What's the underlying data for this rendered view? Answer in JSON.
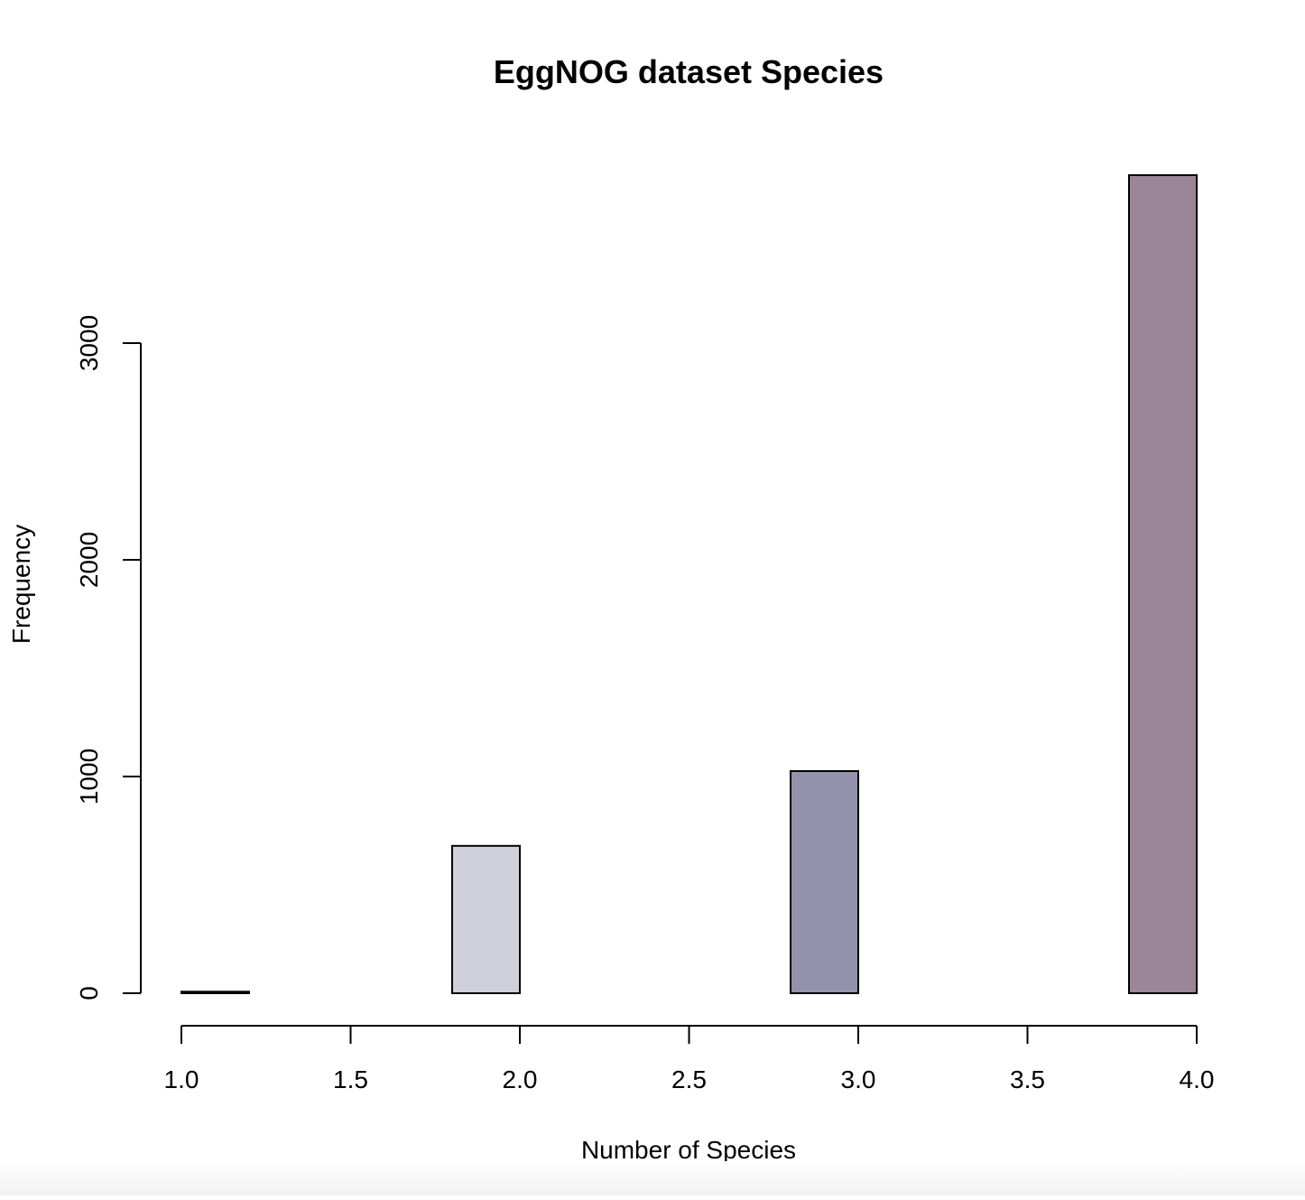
{
  "chart_data": {
    "type": "bar",
    "title": "EggNOG dataset Species",
    "xlabel": "Number of Species",
    "ylabel": "Frequency",
    "bins": [
      {
        "x0": 1.0,
        "x1": 1.2,
        "value": 7
      },
      {
        "x0": 1.2,
        "x1": 1.4,
        "value": 0
      },
      {
        "x0": 1.4,
        "x1": 1.6,
        "value": 0
      },
      {
        "x0": 1.6,
        "x1": 1.8,
        "value": 0
      },
      {
        "x0": 1.8,
        "x1": 2.0,
        "value": 680
      },
      {
        "x0": 2.0,
        "x1": 2.2,
        "value": 0
      },
      {
        "x0": 2.2,
        "x1": 2.4,
        "value": 0
      },
      {
        "x0": 2.4,
        "x1": 2.6,
        "value": 0
      },
      {
        "x0": 2.6,
        "x1": 2.8,
        "value": 0
      },
      {
        "x0": 2.8,
        "x1": 3.0,
        "value": 1025
      },
      {
        "x0": 3.0,
        "x1": 3.2,
        "value": 0
      },
      {
        "x0": 3.2,
        "x1": 3.4,
        "value": 0
      },
      {
        "x0": 3.4,
        "x1": 3.6,
        "value": 0
      },
      {
        "x0": 3.6,
        "x1": 3.8,
        "value": 0
      },
      {
        "x0": 3.8,
        "x1": 4.0,
        "value": 3775
      }
    ],
    "bar_colors": [
      "#ffffff",
      "#ffffff",
      "#ffffff",
      "#ffffff",
      "#cfd0da",
      "#ffffff",
      "#ffffff",
      "#ffffff",
      "#ffffff",
      "#9292ac",
      "#ffffff",
      "#ffffff",
      "#ffffff",
      "#ffffff",
      "#9b8596"
    ],
    "xlim": [
      1.0,
      4.0
    ],
    "x_ticks": [
      1.0,
      1.5,
      2.0,
      2.5,
      3.0,
      3.5,
      4.0
    ],
    "x_tick_labels": [
      "1.0",
      "1.5",
      "2.0",
      "2.5",
      "3.0",
      "3.5",
      "4.0"
    ],
    "ylim": [
      0,
      3775
    ],
    "y_ticks": [
      0,
      1000,
      2000,
      3000
    ],
    "y_tick_labels": [
      "0",
      "1000",
      "2000",
      "3000"
    ],
    "grid": false,
    "legend": "none"
  }
}
